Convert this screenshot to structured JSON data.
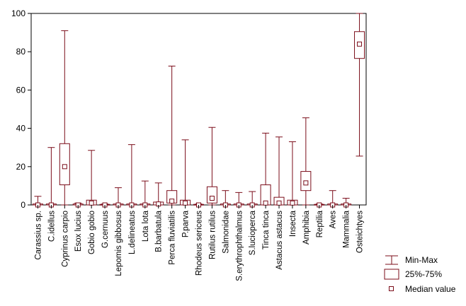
{
  "chart_data": {
    "type": "boxplot",
    "title": "",
    "xlabel": "",
    "ylabel": "",
    "ylim": [
      0,
      100
    ],
    "yticks": [
      0,
      20,
      40,
      60,
      80,
      100
    ],
    "grid": false,
    "legend_position": "bottom-right",
    "colors": {
      "box": "#7b0d1a",
      "plot_bg": "#ffffff",
      "page_bg": "#ffffff"
    },
    "categories": [
      "Carassius sp.",
      "C.idellus",
      "Cyprinus carpio",
      "Esox lucius",
      "Gobio gobio",
      "G.cernuus",
      "Lepomis gibbosus",
      "L.delineatus",
      "Lota lota",
      "B.barbatula",
      "Perca fluviatilis",
      "P.parva",
      "Rhodeus sericeus",
      "Rutilus rutilus",
      "Salmonidae",
      "S.erythrophthalmus",
      "S.lucioperca",
      "Tinca tinca",
      "Astacus astacus",
      "Insecta",
      "Amphibia",
      "Reptilia",
      "Aves",
      "Mammalia",
      "Osteichtyes"
    ],
    "series": [
      {
        "name": "Min-Max",
        "min": [
          0,
          0,
          0,
          0,
          0,
          0,
          0,
          0,
          0,
          0,
          0,
          0,
          0,
          0,
          0,
          0,
          0,
          0,
          0,
          0,
          0,
          0,
          0,
          0,
          25.5
        ],
        "max": [
          4.5,
          30,
          91,
          1,
          28.5,
          0.5,
          9,
          31.5,
          12.5,
          11.5,
          72.5,
          34,
          0.5,
          40.5,
          7.5,
          6.5,
          7,
          37.5,
          35.5,
          33,
          45.5,
          0.5,
          7.5,
          3.5,
          100
        ]
      },
      {
        "name": "25%-75%",
        "q1": [
          0,
          0,
          10.5,
          0,
          0,
          0,
          0,
          0,
          0,
          0,
          1,
          0,
          0,
          1,
          0,
          0,
          0,
          0,
          0,
          0,
          7.5,
          0,
          0,
          0,
          76.5
        ],
        "q3": [
          0.5,
          0.5,
          32,
          0.5,
          2.5,
          0.3,
          0.5,
          0.5,
          0.5,
          1.5,
          7.5,
          2.5,
          0.3,
          9.5,
          0.5,
          0.5,
          0.5,
          10.5,
          4,
          2.5,
          17.5,
          0.3,
          0.5,
          0.5,
          90.5
        ]
      },
      {
        "name": "Median value",
        "median": [
          0,
          0,
          20,
          0,
          1,
          0,
          0,
          0,
          0,
          0.5,
          2,
          1,
          0,
          3.5,
          0,
          0,
          0,
          1,
          1,
          1,
          11.5,
          0,
          0,
          0,
          84
        ]
      }
    ]
  }
}
